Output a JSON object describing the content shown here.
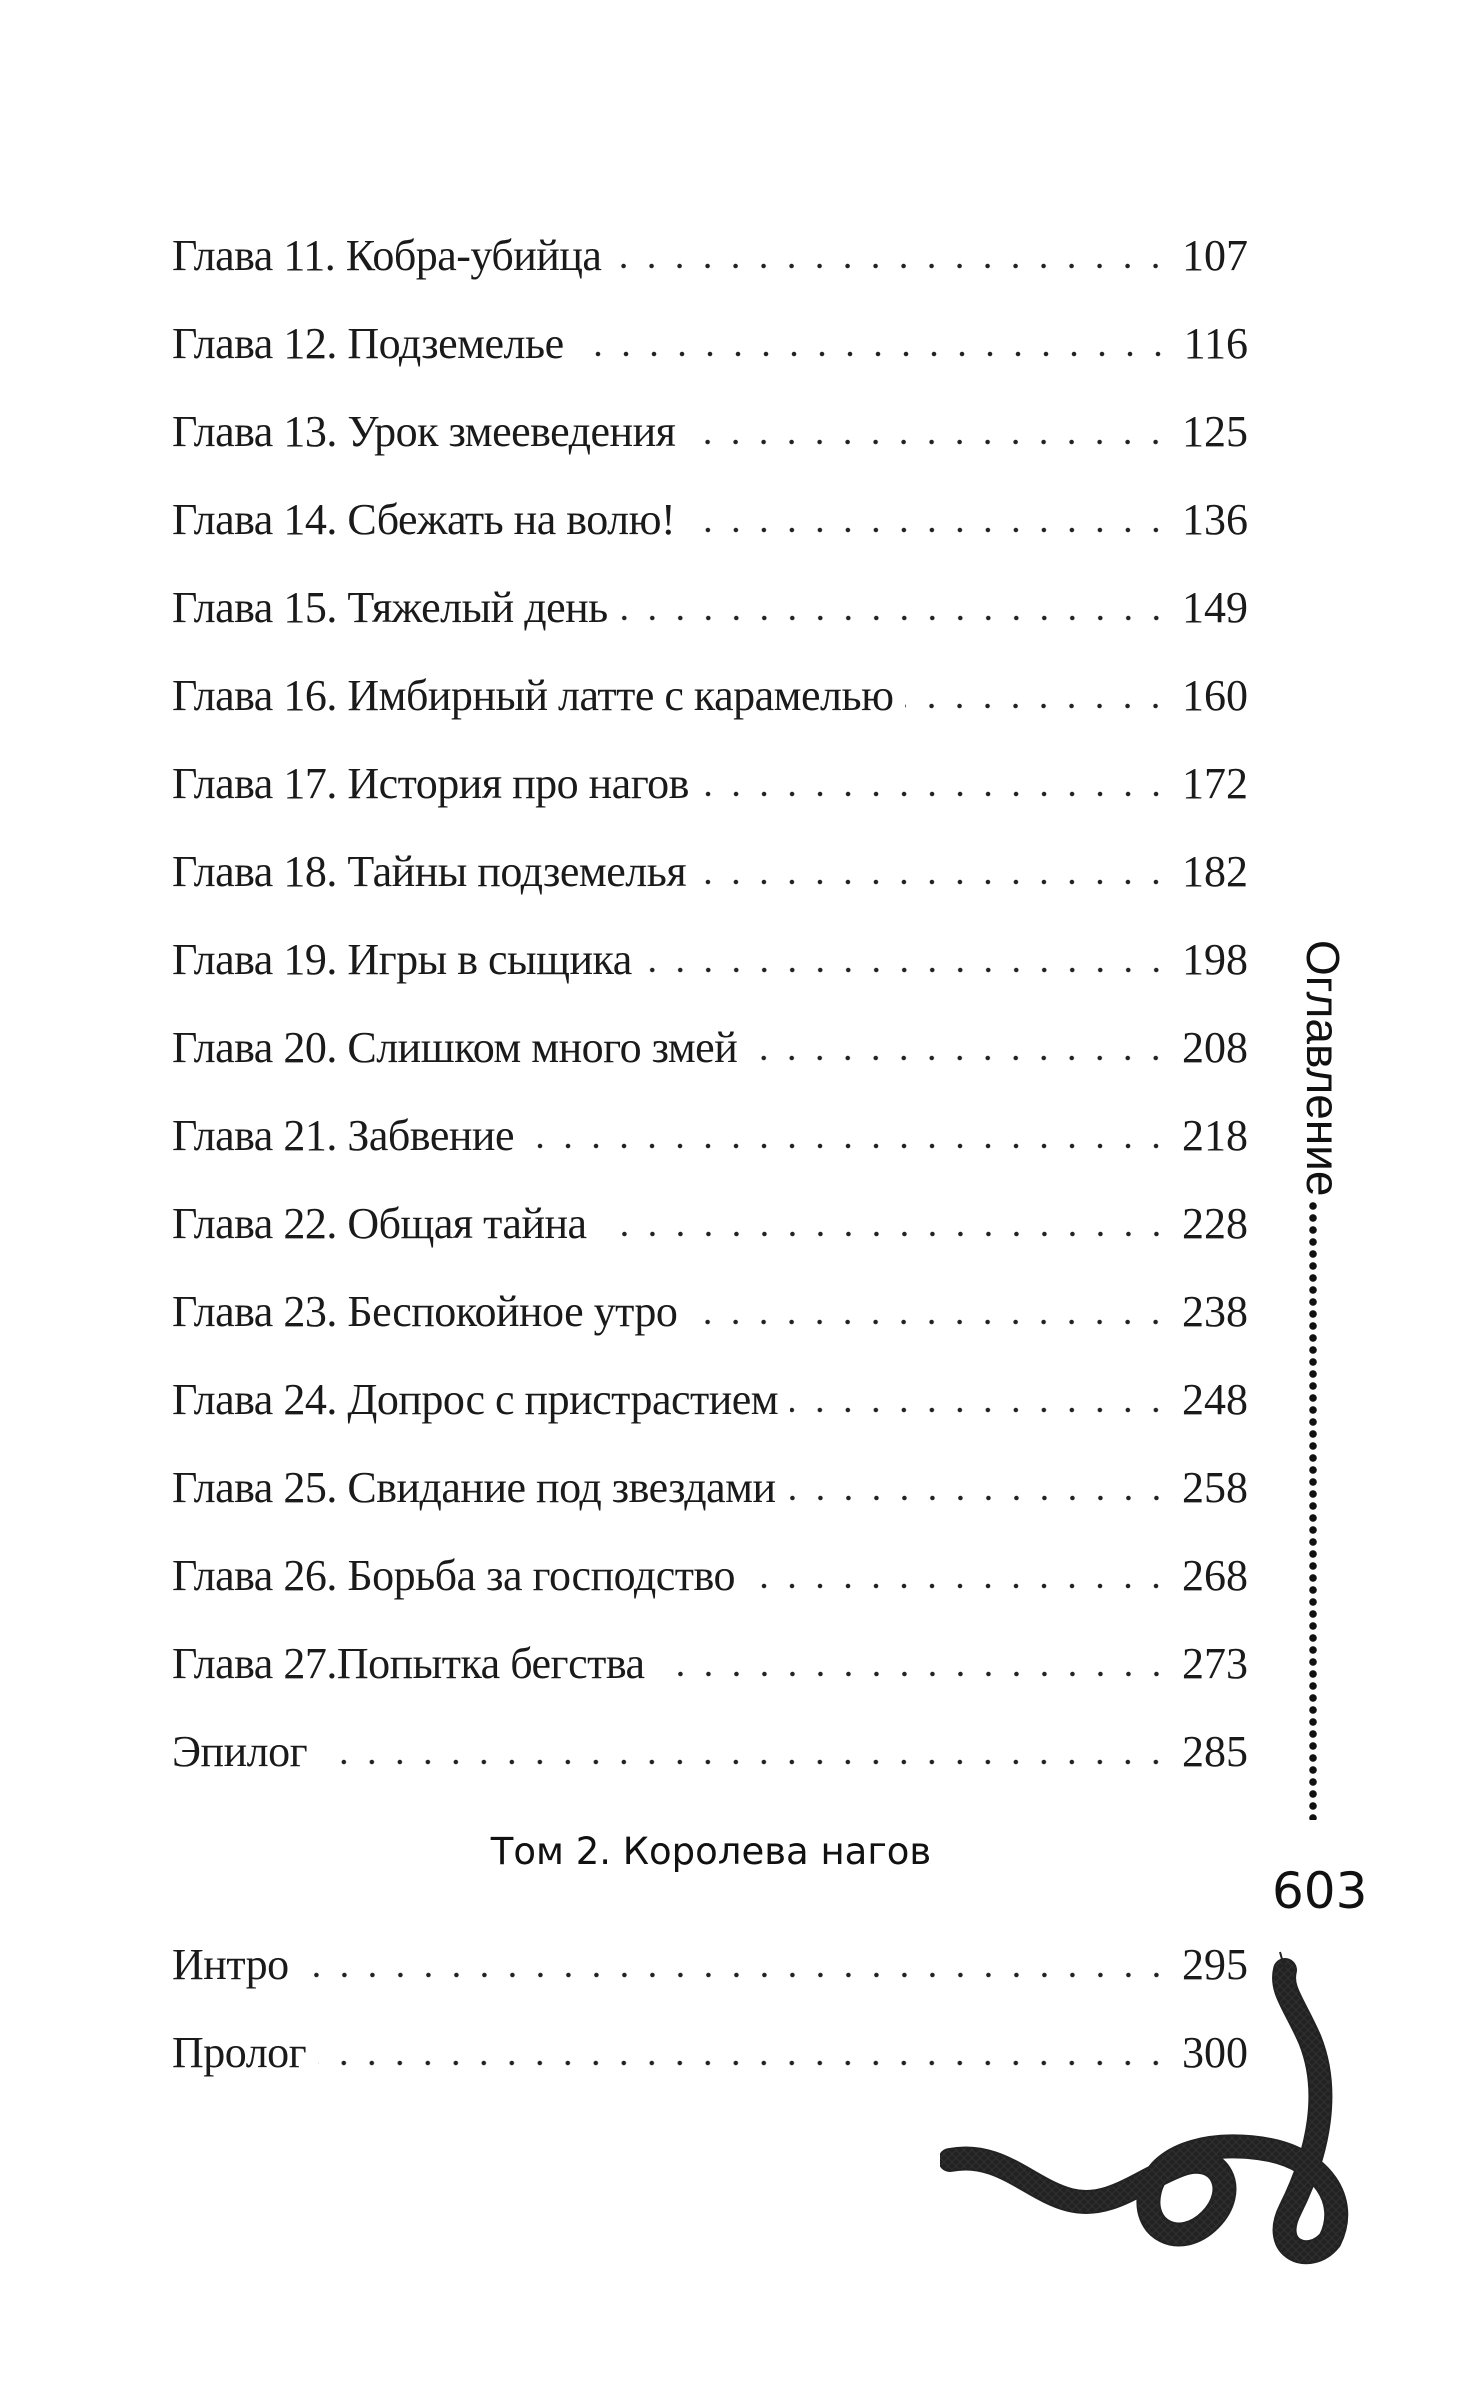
{
  "toc_volume1": [
    {
      "title": "Глава 11. Кобра-убийца",
      "page": "107"
    },
    {
      "title": "Глава 12. Подземелье",
      "page": "116"
    },
    {
      "title": "Глава 13. Урок змееведения",
      "page": "125"
    },
    {
      "title": "Глава 14. Сбежать на волю!",
      "page": "136"
    },
    {
      "title": "Глава 15. Тяжелый день",
      "page": "149"
    },
    {
      "title": "Глава 16. Имбирный латте с карамелью",
      "page": "160"
    },
    {
      "title": "Глава 17. История про нагов",
      "page": "172"
    },
    {
      "title": "Глава 18. Тайны подземелья",
      "page": "182"
    },
    {
      "title": "Глава 19. Игры в сыщика",
      "page": "198"
    },
    {
      "title": "Глава 20. Слишком много змей",
      "page": "208"
    },
    {
      "title": "Глава 21. Забвение",
      "page": "218"
    },
    {
      "title": "Глава 22. Общая тайна",
      "page": "228"
    },
    {
      "title": "Глава 23. Беспокойное утро",
      "page": "238"
    },
    {
      "title": "Глава 24. Допрос с пристрастием",
      "page": "248"
    },
    {
      "title": "Глава 25. Свидание под звездами",
      "page": "258"
    },
    {
      "title": "Глава 26. Борьба за господство",
      "page": "268"
    },
    {
      "title": "Глава 27.Попытка бегства",
      "page": "273"
    },
    {
      "title": "Эпилог",
      "page": "285"
    }
  ],
  "volume2_heading": "Том 2. Королева нагов",
  "toc_volume2": [
    {
      "title": "Интро",
      "page": "295"
    },
    {
      "title": "Пролог",
      "page": "300"
    }
  ],
  "running_head": "Оглавление",
  "page_number": "603",
  "decoration": "snake-illustration"
}
